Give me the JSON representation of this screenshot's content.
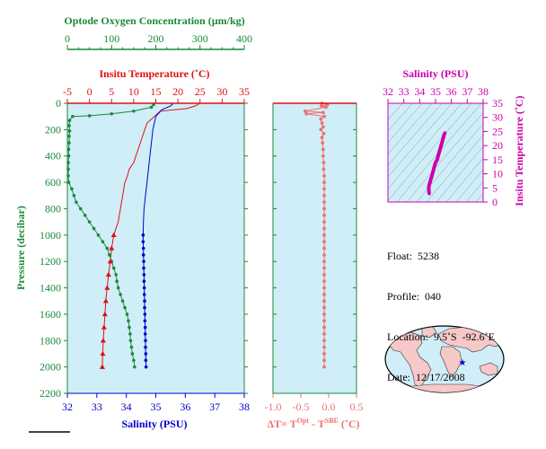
{
  "colors": {
    "oxygen": "#1a8a3a",
    "temperature": "#dd1111",
    "salinity": "#0000cc",
    "delta": "#f07070",
    "magenta": "#cc00aa",
    "panel_bg": "#d0eef8",
    "land": "#f6c8c8"
  },
  "chart_data": [
    {
      "type": "line",
      "name": "profile",
      "ylabel": "Pressure (decibar)",
      "ylim": [
        2200,
        0
      ],
      "yticks": [
        0,
        200,
        400,
        600,
        800,
        1000,
        1200,
        1400,
        1600,
        1800,
        2000,
        2200
      ],
      "axes": {
        "oxygen": {
          "title": "Optode Oxygen Concentration (µm/kg)",
          "range": [
            0,
            400
          ],
          "ticks": [
            0,
            100,
            200,
            300,
            400
          ],
          "position": "top"
        },
        "temperature": {
          "title": "Insitu Temperature (˚C)",
          "range": [
            -5,
            35
          ],
          "ticks": [
            -5,
            0,
            5,
            10,
            15,
            20,
            25,
            30,
            35
          ],
          "position": "top"
        },
        "salinity": {
          "title": "Salinity (PSU)",
          "range": [
            32,
            38
          ],
          "ticks": [
            32,
            33,
            34,
            35,
            36,
            37,
            38
          ],
          "position": "bottom"
        }
      },
      "series": {
        "temperature_line": [
          [
            25,
            0
          ],
          [
            24,
            20
          ],
          [
            22,
            40
          ],
          [
            16,
            60
          ],
          [
            15,
            90
          ],
          [
            14,
            120
          ],
          [
            13,
            150
          ],
          [
            12.5,
            200
          ],
          [
            12,
            250
          ],
          [
            11.5,
            300
          ],
          [
            11,
            350
          ],
          [
            10.5,
            400
          ],
          [
            10,
            450
          ],
          [
            9,
            500
          ],
          [
            8.5,
            560
          ],
          [
            8,
            600
          ],
          [
            7.5,
            700
          ],
          [
            7,
            800
          ],
          [
            6.5,
            900
          ],
          [
            5.5,
            1000
          ]
        ],
        "temperature_points": [
          [
            5.5,
            1000
          ],
          [
            5,
            1100
          ],
          [
            4.7,
            1200
          ],
          [
            4.3,
            1300
          ],
          [
            4,
            1400
          ],
          [
            3.7,
            1500
          ],
          [
            3.5,
            1600
          ],
          [
            3.3,
            1700
          ],
          [
            3.1,
            1800
          ],
          [
            3,
            1900
          ],
          [
            2.9,
            2000
          ]
        ],
        "salinity_line": [
          [
            35.6,
            0
          ],
          [
            35.5,
            20
          ],
          [
            35.2,
            50
          ],
          [
            35,
            100
          ],
          [
            34.95,
            150
          ],
          [
            34.9,
            200
          ],
          [
            34.85,
            300
          ],
          [
            34.8,
            400
          ],
          [
            34.75,
            500
          ],
          [
            34.7,
            600
          ],
          [
            34.65,
            700
          ],
          [
            34.6,
            800
          ],
          [
            34.58,
            900
          ],
          [
            34.57,
            1000
          ]
        ],
        "salinity_points": [
          [
            34.57,
            1000
          ],
          [
            34.57,
            1050
          ],
          [
            34.58,
            1100
          ],
          [
            34.58,
            1150
          ],
          [
            34.59,
            1200
          ],
          [
            34.59,
            1250
          ],
          [
            34.6,
            1300
          ],
          [
            34.6,
            1350
          ],
          [
            34.61,
            1400
          ],
          [
            34.61,
            1450
          ],
          [
            34.62,
            1500
          ],
          [
            34.62,
            1550
          ],
          [
            34.63,
            1600
          ],
          [
            34.63,
            1650
          ],
          [
            34.64,
            1700
          ],
          [
            34.64,
            1750
          ],
          [
            34.65,
            1800
          ],
          [
            34.65,
            1850
          ],
          [
            34.66,
            1900
          ],
          [
            34.66,
            1950
          ],
          [
            34.67,
            2000
          ]
        ],
        "oxygen_points": [
          [
            195,
            10
          ],
          [
            190,
            30
          ],
          [
            150,
            60
          ],
          [
            100,
            80
          ],
          [
            50,
            95
          ],
          [
            12,
            100
          ],
          [
            5,
            130
          ],
          [
            4,
            170
          ],
          [
            5,
            210
          ],
          [
            4,
            250
          ],
          [
            4,
            300
          ],
          [
            3,
            350
          ],
          [
            3,
            400
          ],
          [
            2,
            450
          ],
          [
            2,
            500
          ],
          [
            2,
            550
          ],
          [
            3,
            600
          ],
          [
            10,
            650
          ],
          [
            15,
            700
          ],
          [
            20,
            750
          ],
          [
            30,
            800
          ],
          [
            40,
            850
          ],
          [
            50,
            900
          ],
          [
            60,
            950
          ],
          [
            70,
            1000
          ],
          [
            80,
            1050
          ],
          [
            90,
            1100
          ],
          [
            95,
            1150
          ],
          [
            100,
            1200
          ],
          [
            105,
            1250
          ],
          [
            110,
            1300
          ],
          [
            112,
            1350
          ],
          [
            115,
            1400
          ],
          [
            120,
            1450
          ],
          [
            125,
            1500
          ],
          [
            130,
            1550
          ],
          [
            135,
            1600
          ],
          [
            138,
            1650
          ],
          [
            140,
            1700
          ],
          [
            142,
            1750
          ],
          [
            143,
            1800
          ],
          [
            145,
            1850
          ],
          [
            147,
            1900
          ],
          [
            150,
            1950
          ],
          [
            152,
            2000
          ]
        ]
      }
    },
    {
      "type": "scatter",
      "name": "delta_T",
      "xlabel": "ΔT= T",
      "xlabel_sup1": "Opt",
      "xlabel_mid": " - T",
      "xlabel_sup2": "SBE",
      "xlabel_tail": " (˚C)",
      "xlim": [
        -1.0,
        0.5
      ],
      "xticks": [
        -1.0,
        -0.5,
        0.0,
        0.5
      ],
      "ylim": [
        2200,
        0
      ],
      "points": [
        [
          -0.12,
          0
        ],
        [
          -0.02,
          10
        ],
        [
          -0.13,
          20
        ],
        [
          -0.05,
          30
        ],
        [
          -0.42,
          60
        ],
        [
          -0.1,
          70
        ],
        [
          -0.4,
          80
        ],
        [
          -0.08,
          100
        ],
        [
          -0.14,
          120
        ],
        [
          -0.12,
          150
        ],
        [
          -0.1,
          180
        ],
        [
          -0.14,
          200
        ],
        [
          -0.09,
          230
        ],
        [
          -0.12,
          260
        ],
        [
          -0.11,
          300
        ],
        [
          -0.1,
          350
        ],
        [
          -0.1,
          400
        ],
        [
          -0.09,
          450
        ],
        [
          -0.09,
          500
        ],
        [
          -0.08,
          550
        ],
        [
          -0.08,
          600
        ],
        [
          -0.08,
          650
        ],
        [
          -0.08,
          700
        ],
        [
          -0.08,
          750
        ],
        [
          -0.08,
          800
        ],
        [
          -0.08,
          850
        ],
        [
          -0.08,
          900
        ],
        [
          -0.08,
          950
        ],
        [
          -0.08,
          1000
        ],
        [
          -0.08,
          1050
        ],
        [
          -0.08,
          1100
        ],
        [
          -0.08,
          1150
        ],
        [
          -0.08,
          1200
        ],
        [
          -0.08,
          1250
        ],
        [
          -0.08,
          1300
        ],
        [
          -0.08,
          1350
        ],
        [
          -0.08,
          1400
        ],
        [
          -0.08,
          1450
        ],
        [
          -0.08,
          1500
        ],
        [
          -0.08,
          1550
        ],
        [
          -0.08,
          1600
        ],
        [
          -0.08,
          1650
        ],
        [
          -0.08,
          1700
        ],
        [
          -0.08,
          1750
        ],
        [
          -0.08,
          1800
        ],
        [
          -0.08,
          1850
        ],
        [
          -0.08,
          1900
        ],
        [
          -0.08,
          1950
        ],
        [
          -0.08,
          2000
        ]
      ]
    },
    {
      "type": "scatter",
      "name": "TS",
      "xlabel": "Salinity (PSU)",
      "ylabel": "Insitu Temperature (˚C)",
      "xlim": [
        32,
        38
      ],
      "xticks": [
        32,
        33,
        34,
        35,
        36,
        37,
        38
      ],
      "ylim": [
        0,
        35
      ],
      "yticks": [
        0,
        5,
        10,
        15,
        20,
        25,
        30,
        35
      ],
      "points": [
        [
          34.6,
          3
        ],
        [
          34.58,
          4
        ],
        [
          34.57,
          5
        ],
        [
          34.6,
          6
        ],
        [
          34.65,
          7
        ],
        [
          34.7,
          8
        ],
        [
          34.75,
          9
        ],
        [
          34.8,
          10
        ],
        [
          34.85,
          11
        ],
        [
          34.9,
          12
        ],
        [
          34.95,
          13
        ],
        [
          35.0,
          14
        ],
        [
          35.1,
          15
        ],
        [
          35.15,
          16
        ],
        [
          35.2,
          17
        ],
        [
          35.25,
          18
        ],
        [
          35.3,
          19
        ],
        [
          35.35,
          20
        ],
        [
          35.4,
          21
        ],
        [
          35.45,
          22
        ],
        [
          35.5,
          23
        ],
        [
          35.55,
          24
        ],
        [
          35.6,
          24.5
        ]
      ]
    }
  ],
  "info": {
    "float": "Float:  5238",
    "profile": "Profile:  040",
    "location": "Location:  9.5˚S  -92.6˚E",
    "date": "Date:  12/17/2008"
  },
  "map": {
    "marker_lat": -9.5,
    "marker_lon": -92.6
  }
}
